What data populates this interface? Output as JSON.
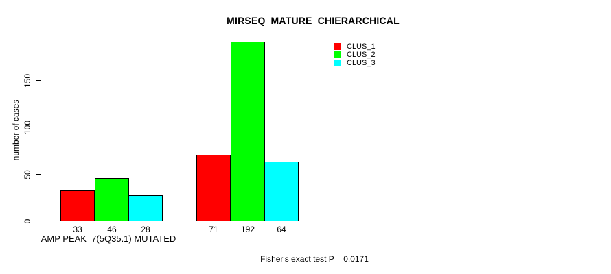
{
  "title": "MIRSEQ_MATURE_CHIERARCHICAL",
  "footer": "Fisher's exact test P = 0.0171",
  "chart_data": {
    "type": "bar",
    "title": "MIRSEQ_MATURE_CHIERARCHICAL",
    "categories": [
      "AMP PEAK  7(5Q35.1) MUTATED",
      ""
    ],
    "series": [
      {
        "name": "CLUS_1",
        "color": "#FF0000",
        "values": [
          33,
          71
        ]
      },
      {
        "name": "CLUS_2",
        "color": "#00FF00",
        "values": [
          46,
          192
        ]
      },
      {
        "name": "CLUS_3",
        "color": "#00FFFF",
        "values": [
          28,
          64
        ]
      }
    ],
    "xlabel": "",
    "ylabel": "number of cases",
    "yticks": [
      0,
      50,
      100,
      150
    ],
    "ylim": [
      0,
      150
    ],
    "bar_value_labels": true,
    "bar_border_color": "#000000",
    "legend_position": "top-right",
    "grid": false,
    "background": "#FFFFFF",
    "annotation": "Fisher's exact test P = 0.0171"
  }
}
